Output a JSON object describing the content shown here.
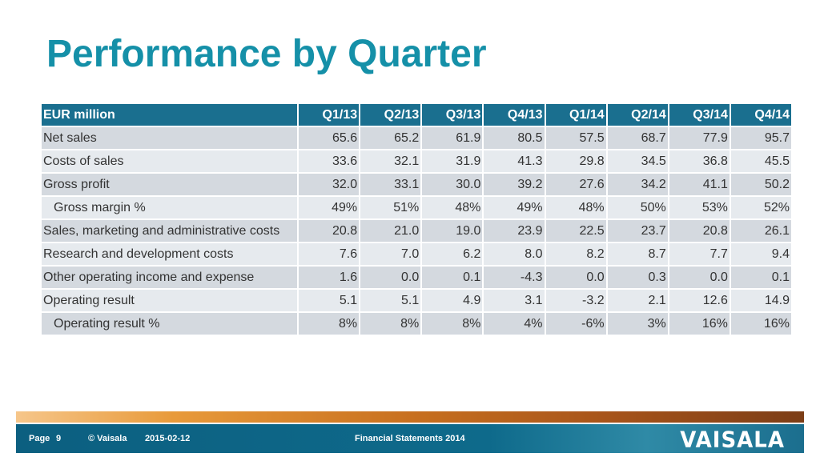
{
  "title": "Performance by Quarter",
  "table": {
    "header": [
      "EUR million",
      "Q1/13",
      "Q2/13",
      "Q3/13",
      "Q4/13",
      "Q1/14",
      "Q2/14",
      "Q3/14",
      "Q4/14"
    ],
    "rows": [
      {
        "label": "Net sales",
        "values": [
          "65.6",
          "65.2",
          "61.9",
          "80.5",
          "57.5",
          "68.7",
          "77.9",
          "95.7"
        ]
      },
      {
        "label": "Costs of sales",
        "values": [
          "33.6",
          "32.1",
          "31.9",
          "41.3",
          "29.8",
          "34.5",
          "36.8",
          "45.5"
        ]
      },
      {
        "label": "Gross profit",
        "values": [
          "32.0",
          "33.1",
          "30.0",
          "39.2",
          "27.6",
          "34.2",
          "41.1",
          "50.2"
        ]
      },
      {
        "label": "Gross margin %",
        "values": [
          "49%",
          "51%",
          "48%",
          "49%",
          "48%",
          "50%",
          "53%",
          "52%"
        ]
      },
      {
        "label": "Sales, marketing and administrative costs",
        "values": [
          "20.8",
          "21.0",
          "19.0",
          "23.9",
          "22.5",
          "23.7",
          "20.8",
          "26.1"
        ]
      },
      {
        "label": "Research and development costs",
        "values": [
          "7.6",
          "7.0",
          "6.2",
          "8.0",
          "8.2",
          "8.7",
          "7.7",
          "9.4"
        ]
      },
      {
        "label": "Other operating income and expense",
        "values": [
          "1.6",
          "0.0",
          "0.1",
          "-4.3",
          "0.0",
          "0.3",
          "0.0",
          "0.1"
        ]
      },
      {
        "label": "Operating result",
        "values": [
          "5.1",
          "5.1",
          "4.9",
          "3.1",
          "-3.2",
          "2.1",
          "12.6",
          "14.9"
        ]
      },
      {
        "label": "Operating result %",
        "values": [
          "8%",
          "8%",
          "8%",
          "4%",
          "-6%",
          "3%",
          "16%",
          "16%"
        ]
      }
    ]
  },
  "footer": {
    "page": "Page",
    "page_number": "9",
    "copyright": "© Vaisala",
    "date": "2015-02-12",
    "doc_title": "Financial Statements 2014",
    "logo": "VAISALA"
  },
  "colors": {
    "title": "#1590a8",
    "header_bg": "#1a6f8f"
  }
}
